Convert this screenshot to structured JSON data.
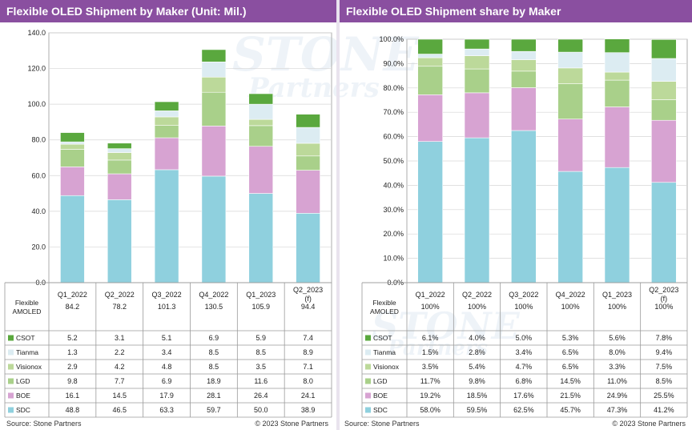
{
  "logo_text": {
    "line1": "STONE",
    "line2": "Partners"
  },
  "colors": {
    "title_bg": "#8a4fa0",
    "CSOT": "#5aa83e",
    "Tianma": "#dcecf2",
    "Visionox": "#bcd99a",
    "LGD": "#a9d08a",
    "BOE": "#d7a3d2",
    "SDC": "#8fd0de"
  },
  "chart_data": [
    {
      "type": "bar",
      "stacked": true,
      "title": "Flexible OLED Shipment by Maker (Unit: Mil.)",
      "categories": [
        "Q1_2022",
        "Q2_2022",
        "Q3_2022",
        "Q4_2022",
        "Q1_2023",
        "Q2_2023\n(f)"
      ],
      "ylim": [
        0,
        140
      ],
      "yticks": [
        "0.0",
        "20.0",
        "40.0",
        "60.0",
        "80.0",
        "100.0",
        "120.0",
        "140.0"
      ],
      "ytick_values": [
        0,
        20,
        40,
        60,
        80,
        100,
        120,
        140
      ],
      "grid": true,
      "total_row": {
        "name": "Flexible\nAMOLED",
        "values": [
          "84.2",
          "78.2",
          "101.3",
          "130.5",
          "105.9",
          "94.4"
        ]
      },
      "series": [
        {
          "name": "CSOT",
          "values": [
            5.2,
            3.1,
            5.1,
            6.9,
            5.9,
            7.4
          ],
          "labels": [
            "5.2",
            "3.1",
            "5.1",
            "6.9",
            "5.9",
            "7.4"
          ]
        },
        {
          "name": "Tianma",
          "values": [
            1.3,
            2.2,
            3.4,
            8.5,
            8.5,
            8.9
          ],
          "labels": [
            "1.3",
            "2.2",
            "3.4",
            "8.5",
            "8.5",
            "8.9"
          ]
        },
        {
          "name": "Visionox",
          "values": [
            2.9,
            4.2,
            4.8,
            8.5,
            3.5,
            7.1
          ],
          "labels": [
            "2.9",
            "4.2",
            "4.8",
            "8.5",
            "3.5",
            "7.1"
          ]
        },
        {
          "name": "LGD",
          "values": [
            9.8,
            7.7,
            6.9,
            18.9,
            11.6,
            8.0
          ],
          "labels": [
            "9.8",
            "7.7",
            "6.9",
            "18.9",
            "11.6",
            "8.0"
          ]
        },
        {
          "name": "BOE",
          "values": [
            16.1,
            14.5,
            17.9,
            28.1,
            26.4,
            24.1
          ],
          "labels": [
            "16.1",
            "14.5",
            "17.9",
            "28.1",
            "26.4",
            "24.1"
          ]
        },
        {
          "name": "SDC",
          "values": [
            48.8,
            46.5,
            63.3,
            59.7,
            50.0,
            38.9
          ],
          "labels": [
            "48.8",
            "46.5",
            "63.3",
            "59.7",
            "50.0",
            "38.9"
          ]
        }
      ],
      "source": "Source: Stone Partners",
      "copyright": "© 2023 Stone Partners"
    },
    {
      "type": "bar",
      "stacked": true,
      "title": "Flexible OLED Shipment share by Maker",
      "categories": [
        "Q1_2022",
        "Q2_2022",
        "Q3_2022",
        "Q4_2022",
        "Q1_2023",
        "Q2_2023\n(f)"
      ],
      "ylim": [
        0,
        100
      ],
      "yticks": [
        "0.0%",
        "10.0%",
        "20.0%",
        "30.0%",
        "40.0%",
        "50.0%",
        "60.0%",
        "70.0%",
        "80.0%",
        "90.0%",
        "100.0%"
      ],
      "ytick_values": [
        0,
        10,
        20,
        30,
        40,
        50,
        60,
        70,
        80,
        90,
        100
      ],
      "grid": true,
      "total_row": {
        "name": "Flexible\nAMOLED",
        "values": [
          "100%",
          "100%",
          "100%",
          "100%",
          "100%",
          "100%"
        ]
      },
      "series": [
        {
          "name": "CSOT",
          "values": [
            6.1,
            4.0,
            5.0,
            5.3,
            5.6,
            7.8
          ],
          "labels": [
            "6.1%",
            "4.0%",
            "5.0%",
            "5.3%",
            "5.6%",
            "7.8%"
          ]
        },
        {
          "name": "Tianma",
          "values": [
            1.5,
            2.8,
            3.4,
            6.5,
            8.0,
            9.4
          ],
          "labels": [
            "1.5%",
            "2.8%",
            "3.4%",
            "6.5%",
            "8.0%",
            "9.4%"
          ]
        },
        {
          "name": "Visionox",
          "values": [
            3.5,
            5.4,
            4.7,
            6.5,
            3.3,
            7.5
          ],
          "labels": [
            "3.5%",
            "5.4%",
            "4.7%",
            "6.5%",
            "3.3%",
            "7.5%"
          ]
        },
        {
          "name": "LGD",
          "values": [
            11.7,
            9.8,
            6.8,
            14.5,
            11.0,
            8.5
          ],
          "labels": [
            "11.7%",
            "9.8%",
            "6.8%",
            "14.5%",
            "11.0%",
            "8.5%"
          ]
        },
        {
          "name": "BOE",
          "values": [
            19.2,
            18.5,
            17.6,
            21.5,
            24.9,
            25.5
          ],
          "labels": [
            "19.2%",
            "18.5%",
            "17.6%",
            "21.5%",
            "24.9%",
            "25.5%"
          ]
        },
        {
          "name": "SDC",
          "values": [
            58.0,
            59.5,
            62.5,
            45.7,
            47.3,
            41.2
          ],
          "labels": [
            "58.0%",
            "59.5%",
            "62.5%",
            "45.7%",
            "47.3%",
            "41.2%"
          ]
        }
      ],
      "source": "Source: Stone Partners",
      "copyright": "© 2023 Stone Partners"
    }
  ]
}
